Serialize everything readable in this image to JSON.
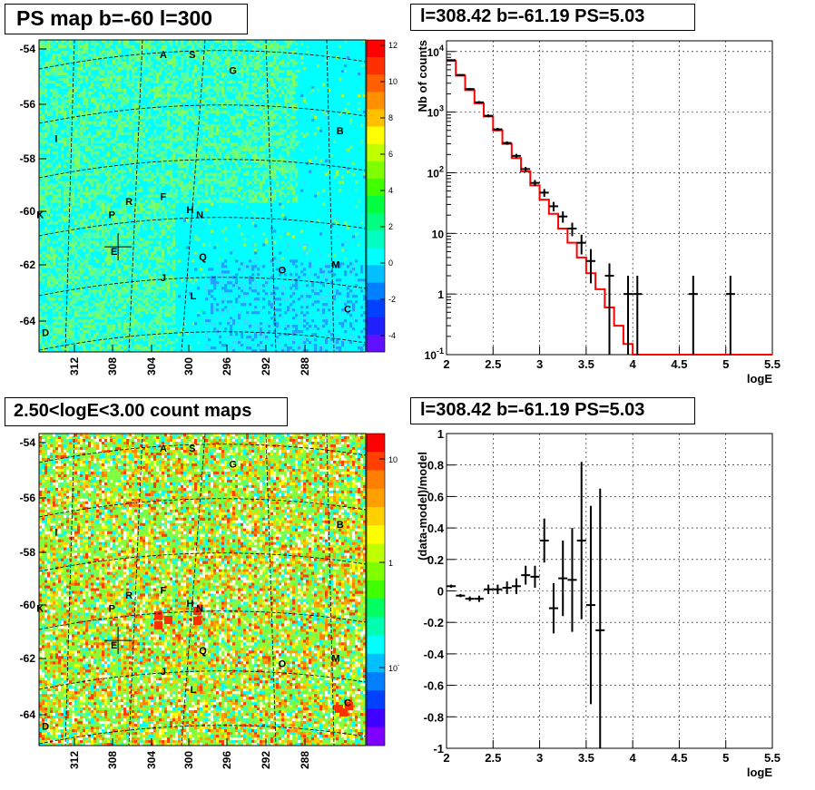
{
  "titles": {
    "map_top": "PS map b=-60 l=300",
    "spectrum": "l=308.42 b=-61.19 PS=5.03",
    "map_bottom": "2.50<logE<3.00 count maps",
    "residual": "l=308.42 b=-61.19 PS=5.03"
  },
  "colors": {
    "data": "#000000",
    "model": "#ff0000",
    "grid": "#000000",
    "map_top_background": "#00ffff",
    "map_bottom_background": "#80ff40"
  },
  "chart_data": [
    {
      "type": "heatmap",
      "title": "PS map b=-60 l=300",
      "x_ticks": [
        "312",
        "308",
        "304",
        "300",
        "296",
        "292",
        "288"
      ],
      "y_ticks": [
        "-54",
        "-56",
        "-58",
        "-60",
        "-62",
        "-64"
      ],
      "colorbar_ticks": [
        "12",
        "10",
        "8",
        "6",
        "4",
        "2",
        "0",
        "-2",
        "-4"
      ],
      "colorbar_range": [
        -5,
        12
      ],
      "marker": {
        "l": 308.42,
        "b": -61.19
      },
      "source_labels": [
        {
          "t": "A",
          "l": 304.2,
          "b": -54.0
        },
        {
          "t": "S",
          "l": 301.5,
          "b": -54.0
        },
        {
          "t": "G",
          "l": 297.7,
          "b": -54.6
        },
        {
          "t": "B",
          "l": 287.7,
          "b": -56.9
        },
        {
          "t": "I",
          "l": 314.2,
          "b": -57.2
        },
        {
          "t": "F",
          "l": 304.2,
          "b": -59.4
        },
        {
          "t": "R",
          "l": 307.4,
          "b": -59.6
        },
        {
          "t": "H",
          "l": 301.7,
          "b": -59.9
        },
        {
          "t": "N",
          "l": 300.8,
          "b": -60.1
        },
        {
          "t": "K",
          "l": 315.7,
          "b": -60.1
        },
        {
          "t": "P",
          "l": 309.0,
          "b": -60.1
        },
        {
          "t": "E",
          "l": 308.8,
          "b": -61.5
        },
        {
          "t": "Q",
          "l": 300.5,
          "b": -61.7
        },
        {
          "t": "O",
          "l": 293.1,
          "b": -62.2
        },
        {
          "t": "M",
          "l": 288.1,
          "b": -62.0
        },
        {
          "t": "J",
          "l": 304.2,
          "b": -62.5
        },
        {
          "t": "L",
          "l": 301.4,
          "b": -63.2
        },
        {
          "t": "C",
          "l": 287.0,
          "b": -63.7
        },
        {
          "t": "D",
          "l": 315.2,
          "b": -64.6
        }
      ]
    },
    {
      "type": "line",
      "title": "l=308.42 b=-61.19 PS=5.03",
      "xlabel": "logE",
      "ylabel": "Nb of counts",
      "xlim": [
        2,
        5.5
      ],
      "ylim": [
        0.1,
        15000
      ],
      "y_scale": "log",
      "grid": true,
      "x_ticks": [
        "2",
        "2.5",
        "3",
        "3.5",
        "4",
        "4.5",
        "5",
        "5.5"
      ],
      "y_ticks": [
        {
          "base": "10",
          "exp": "4",
          "v": 10000
        },
        {
          "base": "10",
          "exp": "3",
          "v": 1000
        },
        {
          "base": "10",
          "exp": "2",
          "v": 100
        },
        {
          "base": "10",
          "exp": "",
          "v": 10
        },
        {
          "base": "1",
          "exp": "",
          "v": 1
        },
        {
          "base": "10",
          "exp": "-1",
          "v": 0.1
        }
      ],
      "series": [
        {
          "type": "step",
          "edges": [
            2.0,
            2.1,
            2.2,
            2.3,
            2.4,
            2.5,
            2.6,
            2.7,
            2.8,
            2.9,
            3.0,
            3.1,
            3.2,
            3.3,
            3.4,
            3.5,
            3.6,
            3.7,
            3.8,
            3.9,
            4.0,
            5.5
          ],
          "values": [
            7000,
            4000,
            2300,
            1400,
            850,
            500,
            300,
            175,
            105,
            62,
            36,
            21,
            12,
            7,
            4,
            2.2,
            1.2,
            0.6,
            0.3,
            0.15,
            0.1
          ]
        },
        {
          "type": "errorbar",
          "x": [
            2.05,
            2.15,
            2.25,
            2.35,
            2.45,
            2.55,
            2.65,
            2.75,
            2.85,
            2.95,
            3.05,
            3.15,
            3.25,
            3.35,
            3.45,
            3.55,
            3.75,
            3.95,
            4.05,
            4.65,
            5.05
          ],
          "y": [
            7200,
            4100,
            2400,
            1450,
            870,
            520,
            310,
            190,
            115,
            68,
            47,
            28,
            19,
            12,
            7,
            3.5,
            2,
            1,
            1,
            1,
            1
          ],
          "ylo": [
            7000,
            3950,
            2300,
            1380,
            820,
            490,
            290,
            175,
            105,
            60,
            40,
            23,
            15,
            9,
            4.5,
            1.5,
            0.1,
            0.1,
            0.1,
            0.1,
            0.1
          ],
          "yhi": [
            7400,
            4250,
            2500,
            1520,
            920,
            550,
            330,
            205,
            125,
            76,
            54,
            33,
            23,
            15,
            9.5,
            5.5,
            3.2,
            2,
            2,
            2,
            2
          ]
        }
      ]
    },
    {
      "type": "heatmap",
      "title": "2.50<logE<3.00 count maps",
      "x_ticks": [
        "312",
        "308",
        "304",
        "300",
        "296",
        "292",
        "288"
      ],
      "y_ticks": [
        "-54",
        "-56",
        "-58",
        "-60",
        "-62",
        "-64"
      ],
      "colorbar_ticks": [
        {
          "base": "10",
          "exp": ""
        },
        {
          "base": "1",
          "exp": ""
        },
        {
          "base": "10",
          "exp": "-1"
        }
      ],
      "colorbar_scale": "log",
      "colorbar_range": [
        0.05,
        15
      ],
      "marker": {
        "l": 308.42,
        "b": -61.19
      }
    },
    {
      "type": "scatter",
      "title": "l=308.42 b=-61.19 PS=5.03",
      "xlabel": "logE",
      "ylabel": "(data-model)/model",
      "xlim": [
        2,
        5.5
      ],
      "ylim": [
        -1,
        1
      ],
      "grid": true,
      "x_ticks": [
        "2",
        "2.5",
        "3",
        "3.5",
        "4",
        "4.5",
        "5",
        "5.5"
      ],
      "y_ticks": [
        "1",
        "0.8",
        "0.6",
        "0.4",
        "0.2",
        "0",
        "-0.2",
        "-0.4",
        "-0.6",
        "-0.8",
        "-1"
      ],
      "x": [
        2.05,
        2.15,
        2.25,
        2.35,
        2.45,
        2.55,
        2.65,
        2.75,
        2.85,
        2.95,
        3.05,
        3.15,
        3.25,
        3.35,
        3.45,
        3.55,
        3.65
      ],
      "y": [
        0.03,
        -0.03,
        -0.05,
        -0.05,
        0.01,
        0.01,
        0.02,
        0.03,
        0.1,
        0.09,
        0.32,
        -0.11,
        0.08,
        0.07,
        0.32,
        -0.09,
        -0.25
      ],
      "err": [
        0.01,
        0.01,
        0.015,
        0.02,
        0.03,
        0.03,
        0.04,
        0.05,
        0.06,
        0.07,
        0.14,
        0.16,
        0.24,
        0.33,
        0.5,
        0.63,
        0.9
      ]
    }
  ]
}
